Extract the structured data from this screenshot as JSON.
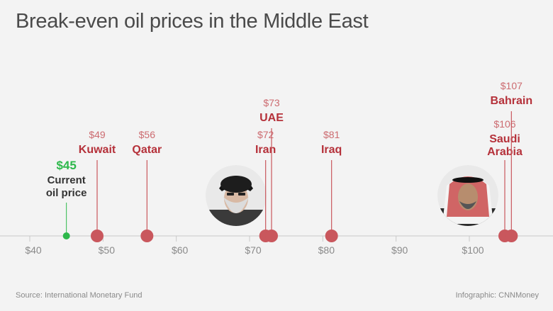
{
  "title": "Break-even oil prices in the Middle East",
  "source": "Source: International Monetary Fund",
  "credit": "Infographic: CNNMoney",
  "colors": {
    "background": "#f3f3f3",
    "marker": "#c9575d",
    "label": "#b5313a",
    "price_label": "#cc6b70",
    "current": "#2db84b",
    "axis": "#c9c9c9",
    "tick_label": "#8a8a8a",
    "dark_text": "#333333"
  },
  "photos": [
    {
      "name": "iran-leader-portrait",
      "near": "Iran"
    },
    {
      "name": "saudi-king-portrait",
      "near": "Saudi Arabia"
    }
  ],
  "chart_data": {
    "type": "scatter",
    "title": "Break-even oil prices in the Middle East",
    "xlim": [
      38,
      111
    ],
    "ticks": [
      40,
      50,
      60,
      70,
      80,
      90,
      100
    ],
    "tick_labels": [
      "$40",
      "$50",
      "$60",
      "$70",
      "$80",
      "$90",
      "$100"
    ],
    "current": {
      "value": 45,
      "price_label": "$45",
      "label": [
        "Current",
        "oil price"
      ]
    },
    "points": [
      {
        "value": 49,
        "price_label": "$49",
        "label": [
          "Kuwait"
        ]
      },
      {
        "value": 56,
        "price_label": "$56",
        "label": [
          "Qatar"
        ]
      },
      {
        "value": 72,
        "price_label": "$72",
        "label": [
          "Iran"
        ]
      },
      {
        "value": 73,
        "price_label": "$73",
        "label": [
          "UAE"
        ]
      },
      {
        "value": 81,
        "price_label": "$81",
        "label": [
          "Iraq"
        ]
      },
      {
        "value": 106,
        "price_label": "$106",
        "label": [
          "Saudi",
          "Arabia"
        ]
      },
      {
        "value": 107,
        "price_label": "$107",
        "label": [
          "Bahrain"
        ]
      }
    ]
  }
}
